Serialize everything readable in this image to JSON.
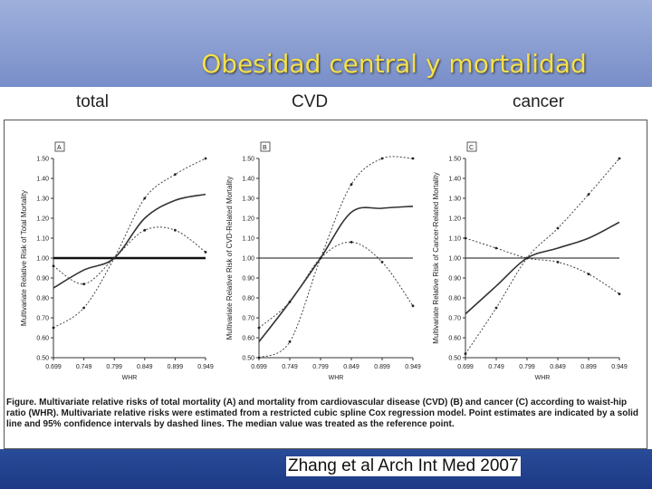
{
  "slide": {
    "title": "Obesidad central y mortalidad",
    "labels": [
      "total",
      "CVD",
      "cancer"
    ],
    "caption": "Figure. Multivariate relative risks of total mortality (A) and mortality from cardiovascular disease (CVD) (B) and cancer (C) according to waist-hip ratio (WHR). Multivariate relative risks were estimated from a restricted cubic spline Cox regression model. Point estimates are indicated by a solid line and 95% confidence intervals by dashed lines. The median value was treated as the reference point.",
    "citation": "Zhang et al Arch Int Med 2007"
  },
  "chart_data": [
    {
      "type": "line",
      "panel": "A",
      "ylabel": "Multivariate Relative Risk of Total Mortality",
      "xlabel": "WHR",
      "x": [
        0.699,
        0.749,
        0.799,
        0.849,
        0.899,
        0.949
      ],
      "xticks": [
        "0.699",
        "0.749",
        "0.799",
        "0.849",
        "0.899",
        "0.949"
      ],
      "yticks": [
        "0.50",
        "0.60",
        "0.70",
        "0.80",
        "0.90",
        "1.00",
        "1.10",
        "1.20",
        "1.30",
        "1.40",
        "1.50"
      ],
      "ylim": [
        0.5,
        1.5
      ],
      "xlim": [
        0.699,
        0.949
      ],
      "reference": 1.0,
      "series": [
        {
          "name": "Point estimate",
          "values": [
            0.85,
            0.94,
            1.0,
            1.2,
            1.29,
            1.32
          ]
        },
        {
          "name": "95% CI upper",
          "values": [
            0.96,
            0.87,
            1.0,
            1.14,
            1.14,
            1.03
          ]
        },
        {
          "name": "95% CI lower",
          "values": [
            0.65,
            0.75,
            1.0,
            1.3,
            1.42,
            1.5
          ]
        }
      ]
    },
    {
      "type": "line",
      "panel": "B",
      "ylabel": "Multivariate Relative Risk of CVD-Related Mortality",
      "xlabel": "WHR",
      "x": [
        0.699,
        0.749,
        0.799,
        0.849,
        0.899,
        0.949
      ],
      "xticks": [
        "0.699",
        "0.749",
        "0.799",
        "0.849",
        "0.899",
        "0.949"
      ],
      "yticks": [
        "0.50",
        "0.60",
        "0.70",
        "0.80",
        "0.90",
        "1.00",
        "1.10",
        "1.20",
        "1.30",
        "1.40",
        "1.50"
      ],
      "ylim": [
        0.5,
        1.5
      ],
      "xlim": [
        0.699,
        0.949
      ],
      "reference": 1.0,
      "series": [
        {
          "name": "Point estimate",
          "values": [
            0.58,
            0.78,
            1.0,
            1.23,
            1.25,
            1.26
          ]
        },
        {
          "name": "95% CI upper",
          "values": [
            0.65,
            0.78,
            1.0,
            1.08,
            0.98,
            0.76
          ]
        },
        {
          "name": "95% CI lower",
          "values": [
            0.5,
            0.58,
            1.0,
            1.37,
            1.5,
            1.5
          ]
        }
      ]
    },
    {
      "type": "line",
      "panel": "C",
      "ylabel": "Multivariate Relative Risk of Cancer-Related Mortality",
      "xlabel": "WHR",
      "x": [
        0.699,
        0.749,
        0.799,
        0.849,
        0.899,
        0.949
      ],
      "xticks": [
        "0.699",
        "0.749",
        "0.799",
        "0.849",
        "0.899",
        "0.949"
      ],
      "yticks": [
        "0.50",
        "0.60",
        "0.70",
        "0.80",
        "0.90",
        "1.00",
        "1.10",
        "1.20",
        "1.30",
        "1.40",
        "1.50"
      ],
      "ylim": [
        0.5,
        1.5
      ],
      "xlim": [
        0.699,
        0.949
      ],
      "reference": 1.0,
      "series": [
        {
          "name": "Point estimate",
          "values": [
            0.72,
            0.86,
            1.0,
            1.05,
            1.1,
            1.18
          ]
        },
        {
          "name": "95% CI upper",
          "values": [
            1.1,
            1.05,
            1.0,
            0.98,
            0.92,
            0.82
          ]
        },
        {
          "name": "95% CI lower",
          "values": [
            0.52,
            0.75,
            1.0,
            1.15,
            1.32,
            1.5
          ]
        }
      ]
    }
  ]
}
